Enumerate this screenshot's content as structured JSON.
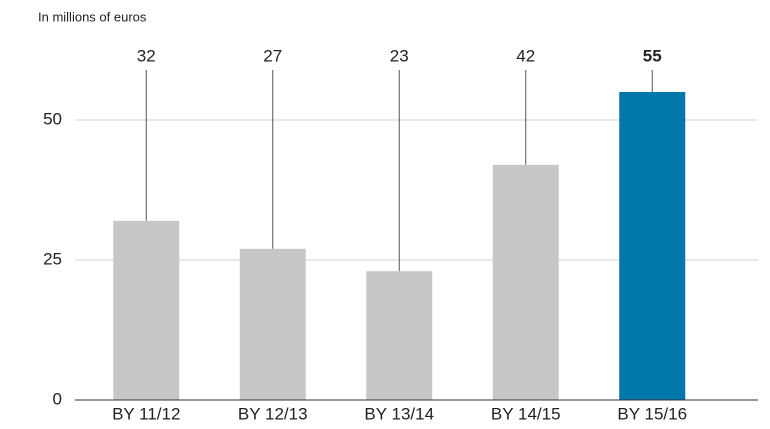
{
  "chart_data": {
    "type": "bar",
    "y_label": "In millions of euros",
    "categories": [
      "BY 11/12",
      "BY 12/13",
      "BY 13/14",
      "BY 14/15",
      "BY 15/16"
    ],
    "values": [
      32,
      27,
      23,
      42,
      55
    ],
    "colors": [
      "#c6c7c6",
      "#c6c7c6",
      "#c6c7c6",
      "#c6c7c6",
      "#0077ab"
    ],
    "highlight_color": "#0077ab",
    "ylim": [
      0,
      60
    ],
    "yticks": [
      0,
      25,
      50
    ],
    "grid": true
  }
}
